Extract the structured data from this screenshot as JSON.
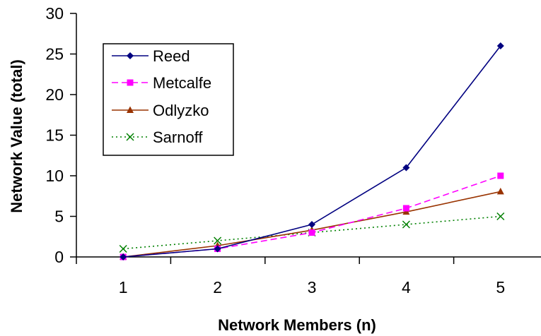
{
  "chart_data": {
    "type": "line",
    "xlabel": "Network Members (n)",
    "ylabel": "Network Value (total)",
    "x": [
      1,
      2,
      3,
      4,
      5
    ],
    "categories": [
      "1",
      "2",
      "3",
      "4",
      "5"
    ],
    "ylim": [
      0,
      30
    ],
    "yticks": [
      0,
      5,
      10,
      15,
      20,
      25,
      30
    ],
    "ytick_labels": [
      "0",
      "5",
      "10",
      "15",
      "20",
      "25",
      "30"
    ],
    "grid": false,
    "legend_position": "upper-left, inside plot area",
    "series": [
      {
        "name": "Reed",
        "values": [
          0,
          1,
          4,
          11,
          26
        ],
        "color": "#000080",
        "marker": "diamond",
        "dash": "solid"
      },
      {
        "name": "Metcalfe",
        "values": [
          0,
          1,
          3,
          6,
          10
        ],
        "color": "#ff00ff",
        "marker": "square",
        "dash": "dashed"
      },
      {
        "name": "Odlyzko",
        "values": [
          0,
          1.39,
          3.3,
          5.55,
          8.05
        ],
        "color": "#993300",
        "marker": "triangle",
        "dash": "solid"
      },
      {
        "name": "Sarnoff",
        "values": [
          1,
          2,
          3,
          4,
          5
        ],
        "color": "#008000",
        "marker": "x",
        "dash": "dotted"
      }
    ]
  }
}
